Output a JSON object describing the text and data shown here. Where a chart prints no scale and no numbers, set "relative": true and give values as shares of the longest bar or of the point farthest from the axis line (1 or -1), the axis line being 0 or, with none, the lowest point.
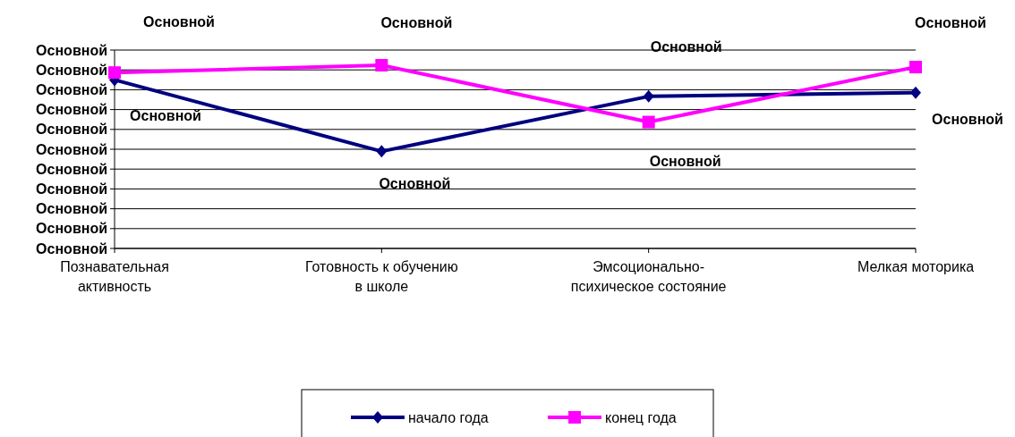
{
  "chart_data": {
    "type": "line",
    "categories": [
      "Познавательная активность",
      "Готовность к обучению в школе",
      "Эмсоционально-психическое состояние",
      "Мелкая моторика"
    ],
    "series": [
      {
        "name": "начало года",
        "color": "#000080",
        "marker": "diamond",
        "values": [
          0.92,
          0.53,
          0.83,
          0.85
        ]
      },
      {
        "name": "конец года",
        "color": "#ff00ff",
        "marker": "square",
        "values": [
          0.96,
          1,
          0.69,
          0.99
        ]
      }
    ],
    "relative": true,
    "annotations": [
      "Основной",
      "Основной",
      "Основной",
      "Основной",
      "Основной",
      "Основной",
      "Основной",
      "Основной",
      "Основной",
      "Основной",
      "Основной",
      {
        "text": "Основной",
        "x": "Познавательная активность",
        "y": 0.92
      },
      {
        "text": "Основной",
        "x": "Готовность к обучению в школе",
        "y": 0.53
      },
      {
        "text": "Основной",
        "x": "Эмсоционально-психическое состояние",
        "y": 0.83
      },
      {
        "text": "Основной",
        "x": "Мелкая моторика",
        "y": 0.85
      },
      {
        "text": "Основной",
        "x": "Познавательная активность",
        "y": 0.96
      },
      {
        "text": "Основной",
        "x": "Готовность к обучению в школе",
        "y": 1
      },
      {
        "text": "Основной",
        "x": "Эмсоционально-психическое состояние",
        "y": 0.69
      },
      {
        "text": "Основной",
        "x": "Мелкая моторика",
        "y": 0.99
      }
    ],
    "grid": "y",
    "legend": "bottom",
    "line_style": "solid"
  }
}
